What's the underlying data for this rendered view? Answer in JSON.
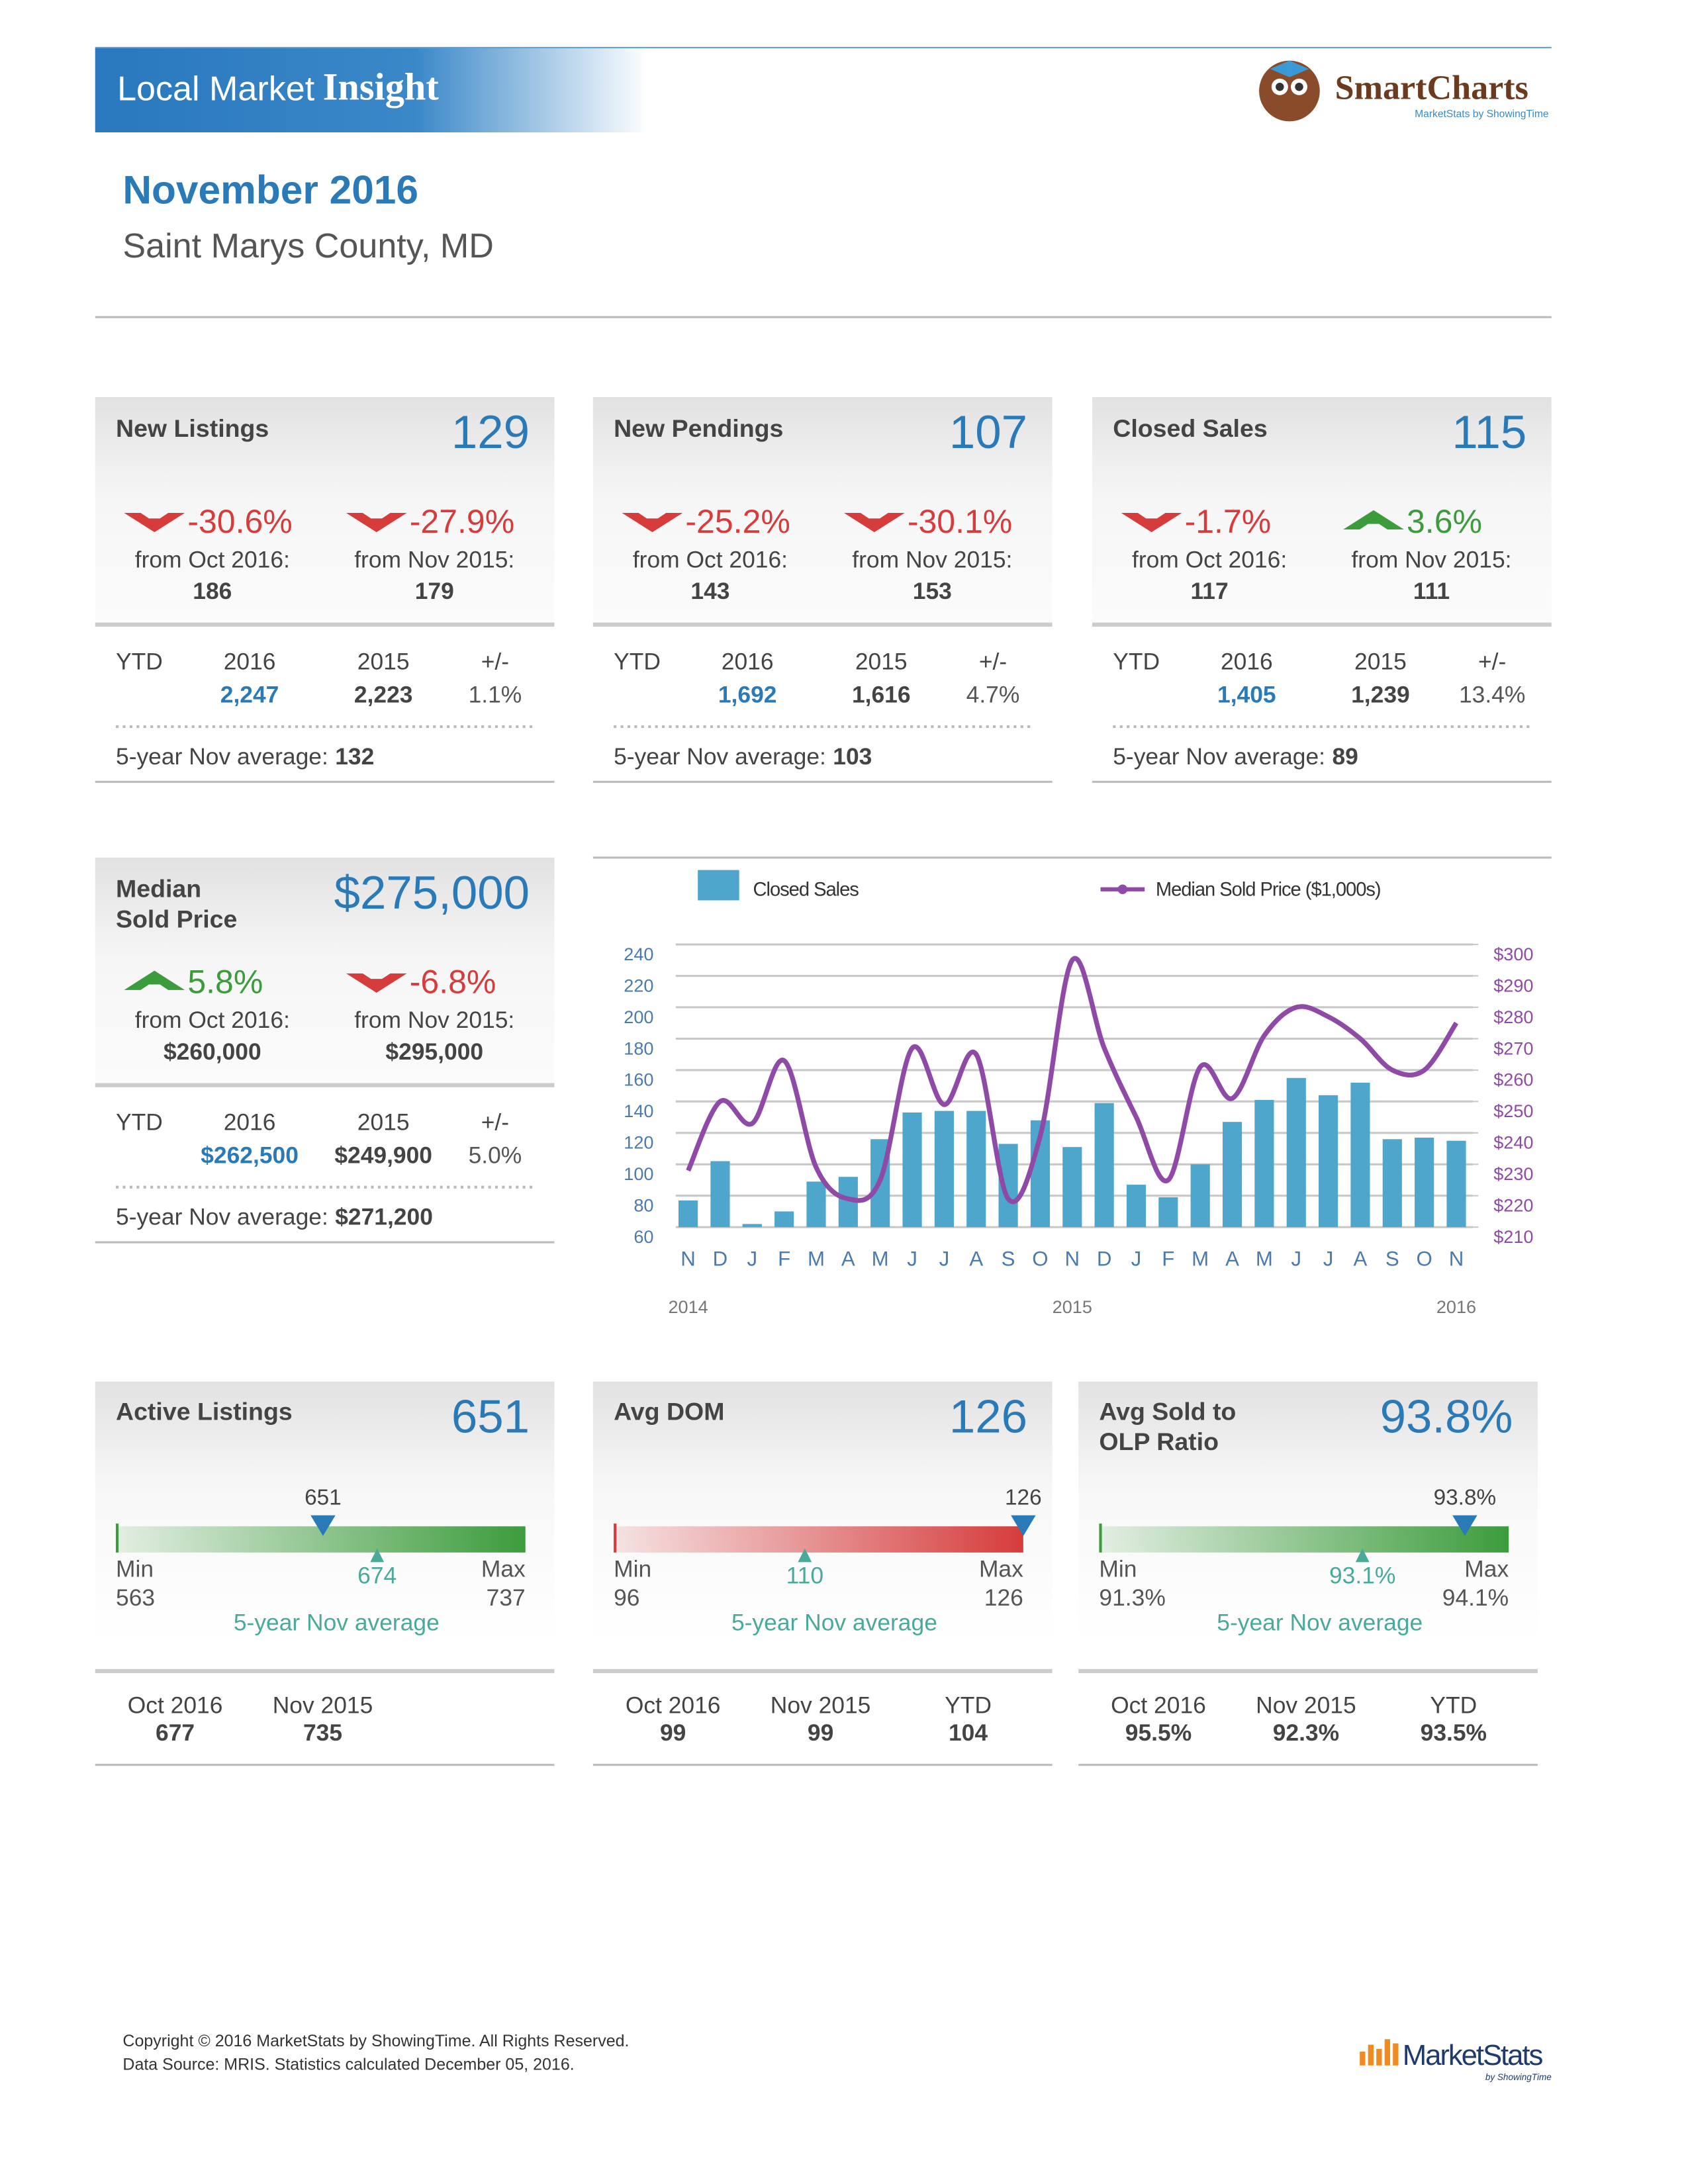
{
  "header": {
    "brand_light": "Local Market",
    "brand_bold": "Insight",
    "logo_name": "SmartCharts",
    "logo_tagline": "MarketStats by ShowingTime",
    "month": "November 2016",
    "location": "Saint Marys County, MD"
  },
  "cards": [
    {
      "title_lines": [
        "New Listings"
      ],
      "value": "129",
      "changes": [
        {
          "value": "-30.6%",
          "direction": "down",
          "label": "from Oct 2016:",
          "prior": "186"
        },
        {
          "value": "-27.9%",
          "direction": "down",
          "label": "from Nov 2015:",
          "prior": "179"
        }
      ],
      "ytd": {
        "label": "YTD",
        "columns": [
          "2016",
          "2015",
          "+/-"
        ],
        "values": [
          "2,247",
          "2,223",
          "1.1%"
        ]
      },
      "average": {
        "label": "5-year Nov average:",
        "value": "132"
      }
    },
    {
      "title_lines": [
        "New Pendings"
      ],
      "value": "107",
      "changes": [
        {
          "value": "-25.2%",
          "direction": "down",
          "label": "from Oct 2016:",
          "prior": "143"
        },
        {
          "value": "-30.1%",
          "direction": "down",
          "label": "from Nov 2015:",
          "prior": "153"
        }
      ],
      "ytd": {
        "label": "YTD",
        "columns": [
          "2016",
          "2015",
          "+/-"
        ],
        "values": [
          "1,692",
          "1,616",
          "4.7%"
        ]
      },
      "average": {
        "label": "5-year Nov average:",
        "value": "103"
      }
    },
    {
      "title_lines": [
        "Closed Sales"
      ],
      "value": "115",
      "changes": [
        {
          "value": "-1.7%",
          "direction": "down",
          "label": "from Oct 2016:",
          "prior": "117"
        },
        {
          "value": "3.6%",
          "direction": "up",
          "label": "from Nov 2015:",
          "prior": "111"
        }
      ],
      "ytd": {
        "label": "YTD",
        "columns": [
          "2016",
          "2015",
          "+/-"
        ],
        "values": [
          "1,405",
          "1,239",
          "13.4%"
        ]
      },
      "average": {
        "label": "5-year Nov average:",
        "value": "89"
      }
    },
    {
      "title_lines": [
        "Median",
        "Sold Price"
      ],
      "value": "$275,000",
      "changes": [
        {
          "value": "5.8%",
          "direction": "up",
          "label": "from Oct 2016:",
          "prior": "$260,000"
        },
        {
          "value": "-6.8%",
          "direction": "down",
          "label": "from Nov 2015:",
          "prior": "$295,000"
        }
      ],
      "ytd": {
        "label": "YTD",
        "columns": [
          "2016",
          "2015",
          "+/-"
        ],
        "values": [
          "$262,500",
          "$249,900",
          "5.0%"
        ]
      },
      "average": {
        "label": "5-year Nov average:",
        "value": "$271,200"
      }
    }
  ],
  "chart_data": {
    "type": "bar",
    "categories": [
      "N",
      "D",
      "J",
      "F",
      "M",
      "A",
      "M",
      "J",
      "J",
      "A",
      "S",
      "O",
      "N",
      "D",
      "J",
      "F",
      "M",
      "A",
      "M",
      "J",
      "J",
      "A",
      "S",
      "O",
      "N"
    ],
    "year_labels": [
      "2014",
      "2015",
      "2016"
    ],
    "series": [
      {
        "name": "Closed Sales",
        "color": "#4fa6cc",
        "values": [
          77,
          102,
          62,
          70,
          89,
          92,
          116,
          133,
          134,
          134,
          113,
          128,
          111,
          139,
          87,
          79,
          100,
          127,
          141,
          155,
          144,
          152,
          116,
          117,
          115
        ]
      },
      {
        "name": "Median Sold Price ($1,000s)",
        "type": "line",
        "axis": "y2",
        "color": "#8e4aa6",
        "values": [
          228,
          250,
          243,
          263,
          229,
          219,
          225,
          267,
          249,
          265,
          219,
          239,
          295,
          267,
          245,
          225,
          261,
          251,
          271,
          280,
          277,
          270,
          260,
          260,
          275
        ]
      }
    ],
    "ylim": [
      60,
      240
    ],
    "yticks": [
      60,
      80,
      100,
      120,
      140,
      160,
      180,
      200,
      220,
      240
    ],
    "y2lim": [
      210,
      300
    ],
    "y2ticks": [
      {
        "value": 210,
        "label": "$210"
      },
      {
        "value": 220,
        "label": "$220"
      },
      {
        "value": 230,
        "label": "$230"
      },
      {
        "value": 240,
        "label": "$240"
      },
      {
        "value": 250,
        "label": "$250"
      },
      {
        "value": 260,
        "label": "$260"
      },
      {
        "value": 270,
        "label": "$270"
      },
      {
        "value": 280,
        "label": "$280"
      },
      {
        "value": 290,
        "label": "$290"
      },
      {
        "value": 300,
        "label": "$300"
      }
    ],
    "grid": true
  },
  "gauges": [
    {
      "title_lines": [
        "Active Listings"
      ],
      "value": "651",
      "color": "#3c9c3c",
      "current": 651,
      "min": 563,
      "max": 737,
      "average": 674,
      "min_label": "Min",
      "max_label": "Max",
      "average_label": "5-year Nov average",
      "comparisons": [
        {
          "label": "Oct 2016",
          "value": "677"
        },
        {
          "label": "Nov 2015",
          "value": "735"
        }
      ]
    },
    {
      "title_lines": [
        "Avg DOM"
      ],
      "value": "126",
      "color": "#d63c3c",
      "current": 126,
      "min": 96,
      "max": 126,
      "average": 110,
      "min_label": "Min",
      "max_label": "Max",
      "average_label": "5-year Nov average",
      "comparisons": [
        {
          "label": "Oct 2016",
          "value": "99"
        },
        {
          "label": "Nov 2015",
          "value": "99"
        },
        {
          "label": "YTD",
          "value": "104"
        }
      ]
    },
    {
      "title_lines": [
        "Avg Sold to",
        "OLP Ratio"
      ],
      "value": "93.8%",
      "color": "#3c9c3c",
      "current": {
        "value": 93.8,
        "label": "93.8%"
      },
      "min": {
        "value": 91.3,
        "label": "91.3%"
      },
      "max": {
        "value": 94.1,
        "label": "94.1%"
      },
      "average": {
        "value": 93.1,
        "label": "93.1%"
      },
      "min_label": "Min",
      "max_label": "Max",
      "average_label": "5-year Nov average",
      "comparisons": [
        {
          "label": "Oct 2016",
          "value": "95.5%"
        },
        {
          "label": "Nov 2015",
          "value": "92.3%"
        },
        {
          "label": "YTD",
          "value": "93.5%"
        }
      ]
    }
  ],
  "footer": {
    "lines": [
      "Copyright © 2016 MarketStats by ShowingTime. All Rights Reserved.",
      "Data Source: MRIS. Statistics calculated December 05, 2016."
    ],
    "logo_name": "MarketStats",
    "logo_tagline": "by ShowingTime"
  }
}
